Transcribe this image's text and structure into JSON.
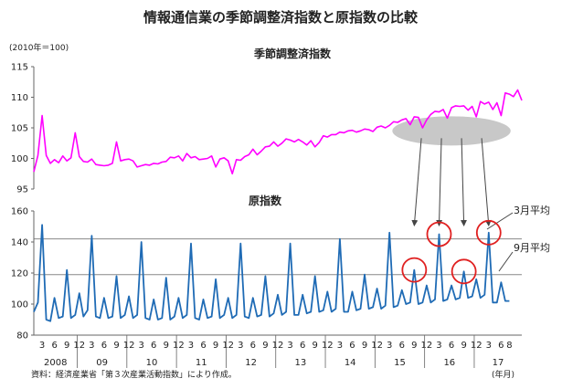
{
  "chart_data": {
    "type": "line",
    "title": "情報通信業の季節調整済指数と原指数の比較",
    "unit_label": "(2010年＝100)",
    "source": "資料：経済産業省「第３次産業活動指数」により作成。",
    "x_unit": "(年月)",
    "years": [
      "2008",
      "09",
      "10",
      "11",
      "12",
      "13",
      "14",
      "15",
      "16",
      "17"
    ],
    "month_ticks": [
      {
        "label": "3",
        "i": 2
      },
      {
        "label": "6",
        "i": 5
      },
      {
        "label": "9",
        "i": 8
      },
      {
        "label": "12",
        "i": 11
      },
      {
        "label": "3",
        "i": 14
      },
      {
        "label": "6",
        "i": 17
      },
      {
        "label": "9",
        "i": 20
      },
      {
        "label": "12",
        "i": 23
      },
      {
        "label": "3",
        "i": 26
      },
      {
        "label": "6",
        "i": 29
      },
      {
        "label": "9",
        "i": 32
      },
      {
        "label": "12",
        "i": 35
      },
      {
        "label": "3",
        "i": 38
      },
      {
        "label": "6",
        "i": 41
      },
      {
        "label": "9",
        "i": 44
      },
      {
        "label": "12",
        "i": 47
      },
      {
        "label": "3",
        "i": 50
      },
      {
        "label": "6",
        "i": 53
      },
      {
        "label": "9",
        "i": 56
      },
      {
        "label": "12",
        "i": 59
      },
      {
        "label": "3",
        "i": 62
      },
      {
        "label": "6",
        "i": 65
      },
      {
        "label": "9",
        "i": 68
      },
      {
        "label": "12",
        "i": 71
      },
      {
        "label": "3",
        "i": 74
      },
      {
        "label": "6",
        "i": 77
      },
      {
        "label": "9",
        "i": 80
      },
      {
        "label": "12",
        "i": 83
      },
      {
        "label": "3",
        "i": 86
      },
      {
        "label": "6",
        "i": 89
      },
      {
        "label": "9",
        "i": 92
      },
      {
        "label": "12",
        "i": 95
      },
      {
        "label": "3",
        "i": 98
      },
      {
        "label": "6",
        "i": 101
      },
      {
        "label": "9",
        "i": 104
      },
      {
        "label": "12",
        "i": 107
      },
      {
        "label": "3",
        "i": 110
      },
      {
        "label": "6",
        "i": 113
      },
      {
        "label": "8",
        "i": 115
      }
    ],
    "panels": [
      {
        "title": "季節調整済指数",
        "ylim": [
          95,
          115
        ],
        "yticks": [
          95,
          100,
          105,
          110,
          115
        ],
        "color": "#ff00ff",
        "values": [
          97.8,
          100.5,
          107.0,
          100.5,
          99.2,
          99.8,
          99.3,
          100.4,
          99.6,
          100.1,
          104.2,
          100.3,
          99.5,
          99.4,
          99.9,
          99.0,
          98.9,
          98.8,
          98.9,
          99.2,
          102.7,
          99.6,
          99.8,
          99.9,
          99.6,
          98.6,
          98.8,
          99.0,
          98.9,
          99.2,
          99.1,
          99.4,
          99.5,
          100.2,
          100.1,
          100.4,
          99.6,
          100.8,
          100.1,
          100.3,
          99.8,
          99.9,
          100.0,
          100.4,
          98.6,
          99.9,
          100.1,
          99.6,
          97.5,
          99.8,
          99.7,
          100.3,
          100.6,
          101.5,
          100.6,
          101.2,
          101.9,
          102.0,
          102.7,
          102.0,
          102.5,
          103.2,
          103.0,
          102.7,
          103.1,
          102.7,
          102.2,
          102.9,
          101.9,
          102.6,
          103.7,
          103.5,
          103.9,
          103.9,
          104.3,
          104.2,
          104.5,
          104.6,
          104.3,
          104.5,
          104.8,
          104.7,
          104.4,
          105.1,
          105.3,
          105.0,
          105.4,
          106.0,
          105.9,
          106.3,
          106.5,
          105.5,
          106.8,
          106.7,
          105.0,
          106.3,
          107.2,
          107.7,
          107.6,
          108.0,
          106.6,
          108.3,
          108.6,
          108.5,
          108.6,
          107.9,
          108.5,
          106.8,
          109.3,
          108.9,
          109.2,
          108.0,
          109.1,
          107.0,
          110.7,
          110.5,
          110.1,
          111.2,
          109.5
        ]
      },
      {
        "title": "原指数",
        "ylim": [
          80,
          160
        ],
        "yticks": [
          80,
          100,
          120,
          140,
          160
        ],
        "color": "#1f6bb5",
        "values": [
          95,
          101,
          151,
          90,
          89,
          104,
          91,
          92,
          122,
          91,
          93,
          107,
          92,
          96,
          144,
          92,
          91,
          104,
          91,
          92,
          118,
          91,
          93,
          105,
          91,
          93,
          140,
          91,
          90,
          103,
          90,
          91,
          117,
          90,
          92,
          104,
          91,
          93,
          139,
          91,
          90,
          103,
          91,
          92,
          116,
          91,
          93,
          104,
          91,
          93,
          139,
          92,
          91,
          104,
          92,
          93,
          118,
          92,
          94,
          106,
          93,
          95,
          139,
          93,
          93,
          106,
          94,
          95,
          118,
          95,
          96,
          108,
          95,
          97,
          142,
          95,
          95,
          108,
          96,
          97,
          119,
          97,
          98,
          110,
          97,
          99,
          146,
          98,
          99,
          109,
          100,
          101,
          122,
          100,
          101,
          112,
          101,
          103,
          145,
          102,
          103,
          112,
          103,
          104,
          121,
          104,
          105,
          116,
          104,
          106,
          146,
          101,
          101,
          114,
          102,
          102
        ]
      }
    ],
    "reference_lines": [
      {
        "label": "3月平均",
        "value": 142
      },
      {
        "label": "9月平均",
        "value": 119
      }
    ],
    "highlight_circles_i": [
      92,
      98,
      104,
      110
    ],
    "arrows_i": [
      92,
      98,
      104,
      110
    ],
    "colors": {
      "reference": "#888888",
      "ellipse": "#c8c8c8",
      "circle": "#e02020",
      "arrow": "#444444",
      "axis": "#666666"
    }
  }
}
